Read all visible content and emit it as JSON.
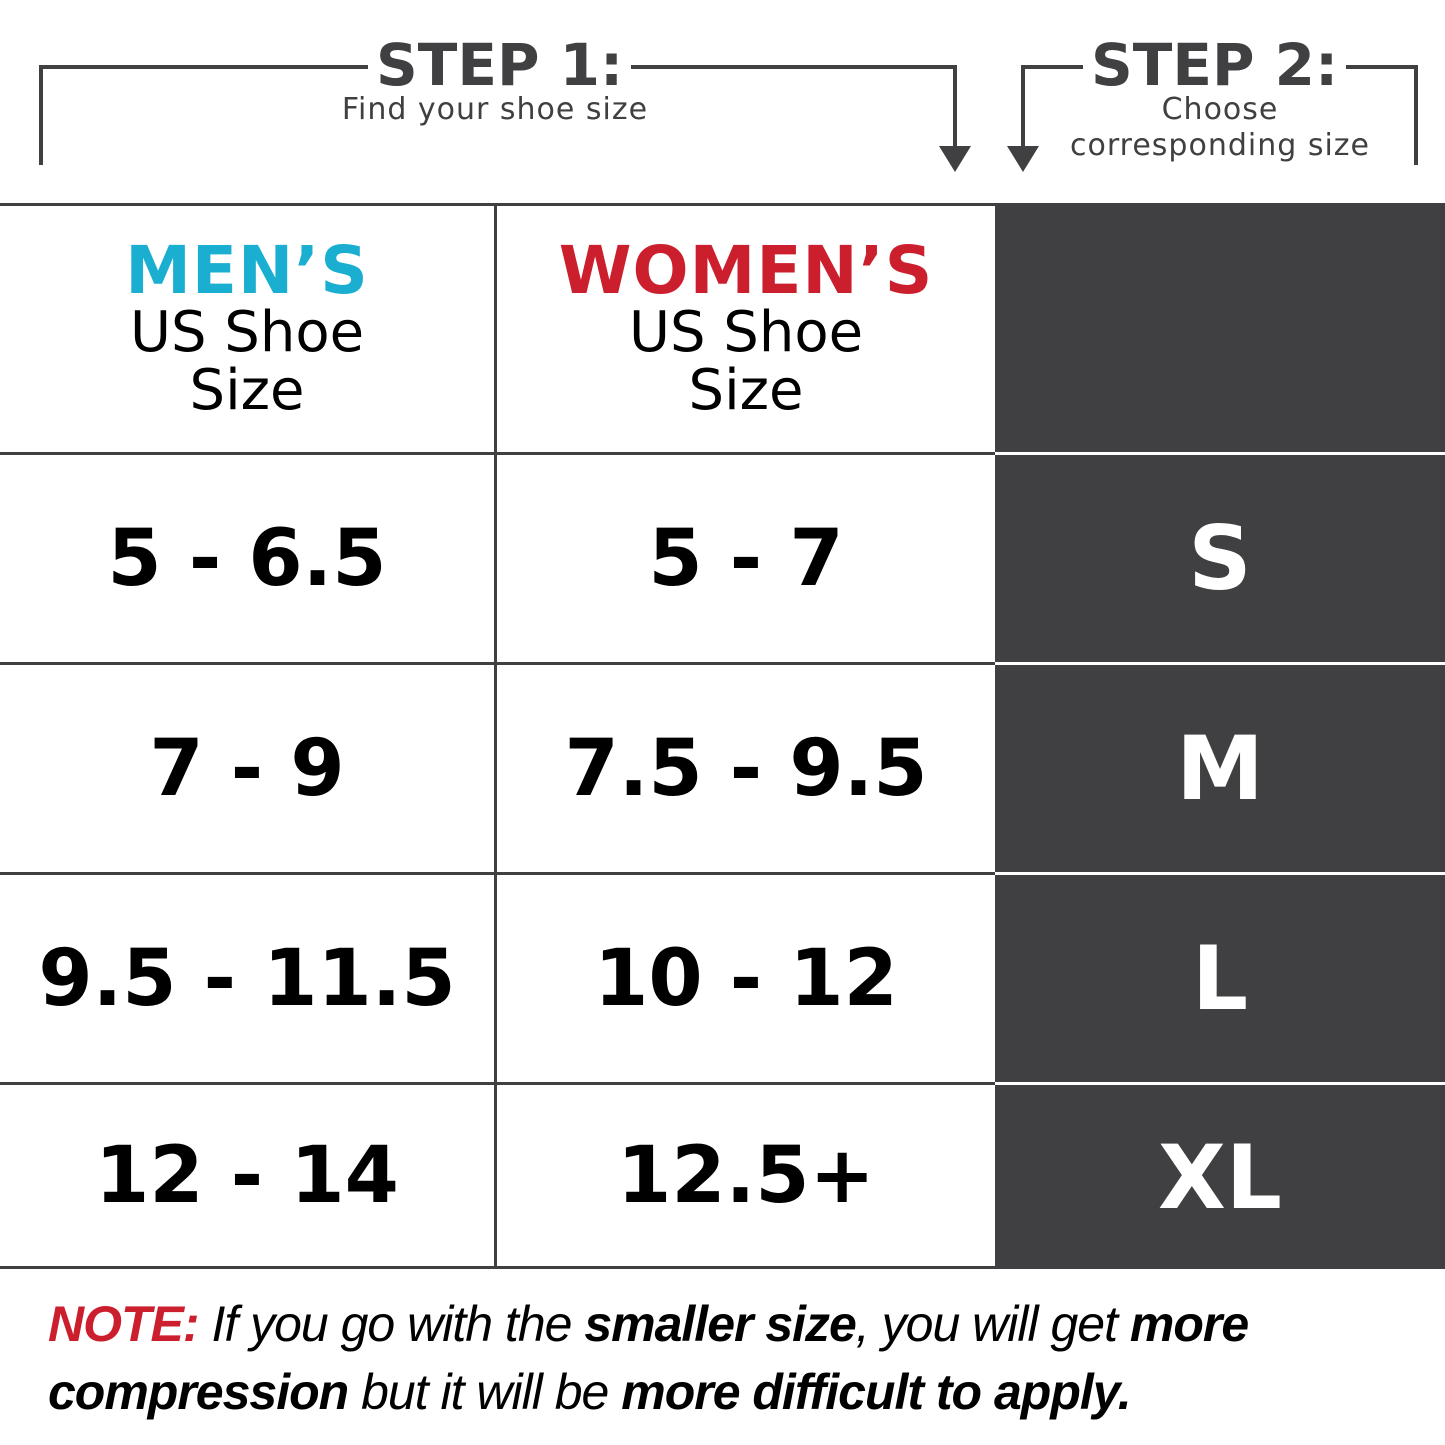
{
  "step1": {
    "title": "STEP 1:",
    "subtitle": "Find your shoe size"
  },
  "step2": {
    "title": "STEP 2:",
    "subtitle_line1": "Choose",
    "subtitle_line2": "corresponding size"
  },
  "table": {
    "headers": {
      "men": {
        "brand": "MEN’S",
        "line1": "US Shoe",
        "line2": "Size"
      },
      "women": {
        "brand": "WOMEN’S",
        "line1": "US Shoe",
        "line2": "Size"
      },
      "size": ""
    },
    "rows": [
      {
        "men": "5 - 6.5",
        "women": "5 - 7",
        "size": "S"
      },
      {
        "men": "7 - 9",
        "women": "7.5 - 9.5",
        "size": "M"
      },
      {
        "men": "9.5 - 11.5",
        "women": "10 - 12",
        "size": "L"
      },
      {
        "men": "12 - 14",
        "women": "12.5+",
        "size": "XL"
      }
    ]
  },
  "note": {
    "label": "NOTE:",
    "part1": " If you go with the ",
    "bold1": "smaller size",
    "part2": ", you will get ",
    "bold2": "more compression",
    "part3": " but it will be ",
    "bold3": "more difficult to apply."
  },
  "colors": {
    "men": "#1aafd0",
    "women": "#cc1f2e",
    "dark": "#404042"
  }
}
